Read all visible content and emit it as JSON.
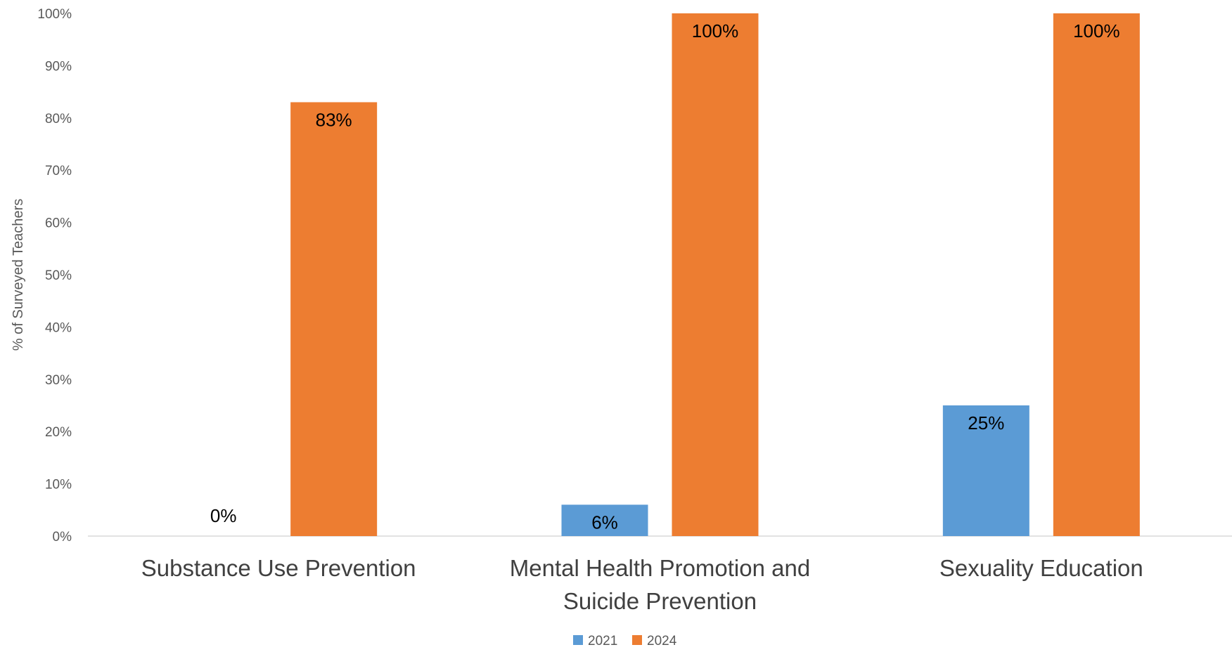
{
  "chart_data": {
    "type": "bar",
    "title": "",
    "xlabel": "",
    "ylabel": "% of Surveyed Teachers",
    "categories": [
      [
        "Substance Use Prevention"
      ],
      [
        "Mental Health Promotion and",
        "Suicide Prevention"
      ],
      [
        "Sexuality Education"
      ]
    ],
    "series": [
      {
        "name": "2021",
        "color": "#5B9BD5",
        "values": [
          0,
          6,
          25
        ],
        "labels": [
          "0%",
          "6%",
          "25%"
        ]
      },
      {
        "name": "2024",
        "color": "#ED7D31",
        "values": [
          83,
          100,
          100
        ],
        "labels": [
          "83%",
          "100%",
          "100%"
        ]
      }
    ],
    "ylim": [
      0,
      100
    ],
    "yticks": [
      0,
      10,
      20,
      30,
      40,
      50,
      60,
      70,
      80,
      90,
      100
    ],
    "ytick_labels": [
      "0%",
      "10%",
      "20%",
      "30%",
      "40%",
      "50%",
      "60%",
      "70%",
      "80%",
      "90%",
      "100%"
    ],
    "grid": false,
    "legend_position": "bottom"
  }
}
